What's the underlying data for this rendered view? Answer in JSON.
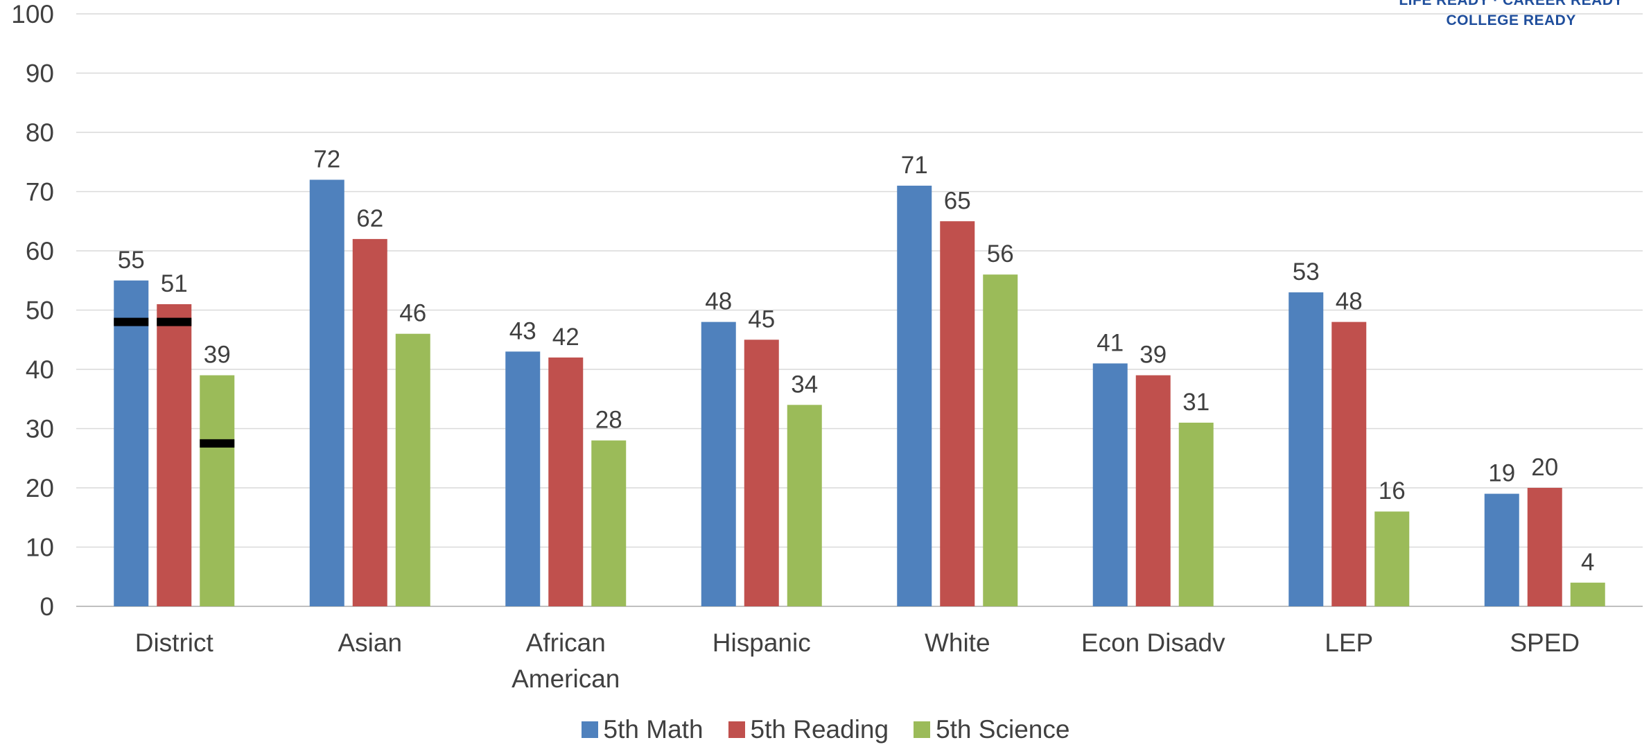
{
  "logo": {
    "line1": "LIFE READY · CAREER READY",
    "line2": "COLLEGE READY"
  },
  "colors": {
    "math": "#4f81bd",
    "reading": "#c0504d",
    "science": "#9bbb59",
    "marker": "#000000",
    "grid": "#d9d9d9",
    "text": "#404040"
  },
  "legend": [
    {
      "name": "5th Math",
      "color": "#4f81bd"
    },
    {
      "name": "5th Reading",
      "color": "#c0504d"
    },
    {
      "name": "5th Science",
      "color": "#9bbb59"
    }
  ],
  "chart_data": {
    "type": "bar",
    "title": "",
    "xlabel": "",
    "ylabel": "",
    "ylim": [
      0,
      100
    ],
    "yticks": [
      0,
      10,
      20,
      30,
      40,
      50,
      60,
      70,
      80,
      90,
      100
    ],
    "grid": true,
    "legend_position": "bottom",
    "categories": [
      [
        "District"
      ],
      [
        "Asian"
      ],
      [
        "African",
        "American"
      ],
      [
        "Hispanic"
      ],
      [
        "White"
      ],
      [
        "Econ Disadv"
      ],
      [
        "LEP"
      ],
      [
        "SPED"
      ]
    ],
    "series": [
      {
        "name": "5th Math",
        "color": "#4f81bd",
        "values": [
          55,
          72,
          43,
          48,
          71,
          41,
          53,
          19
        ]
      },
      {
        "name": "5th Reading",
        "color": "#c0504d",
        "values": [
          51,
          62,
          42,
          45,
          65,
          39,
          48,
          20
        ]
      },
      {
        "name": "5th Science",
        "color": "#9bbb59",
        "values": [
          39,
          46,
          28,
          34,
          56,
          31,
          16,
          4
        ]
      }
    ],
    "data_labels": [
      [
        "55",
        "72",
        "43",
        "48",
        "71",
        "41",
        "53",
        "19"
      ],
      [
        "51",
        "62",
        "42",
        "45",
        "65",
        "39",
        "48",
        "20"
      ],
      [
        "39",
        "46",
        "28",
        "34",
        "56",
        "31",
        "16",
        "4"
      ]
    ],
    "markers": [
      {
        "category_index": 0,
        "series_index": 0,
        "value": 48
      },
      {
        "category_index": 0,
        "series_index": 1,
        "value": 48
      },
      {
        "category_index": 0,
        "series_index": 2,
        "value": 27.5
      }
    ]
  }
}
